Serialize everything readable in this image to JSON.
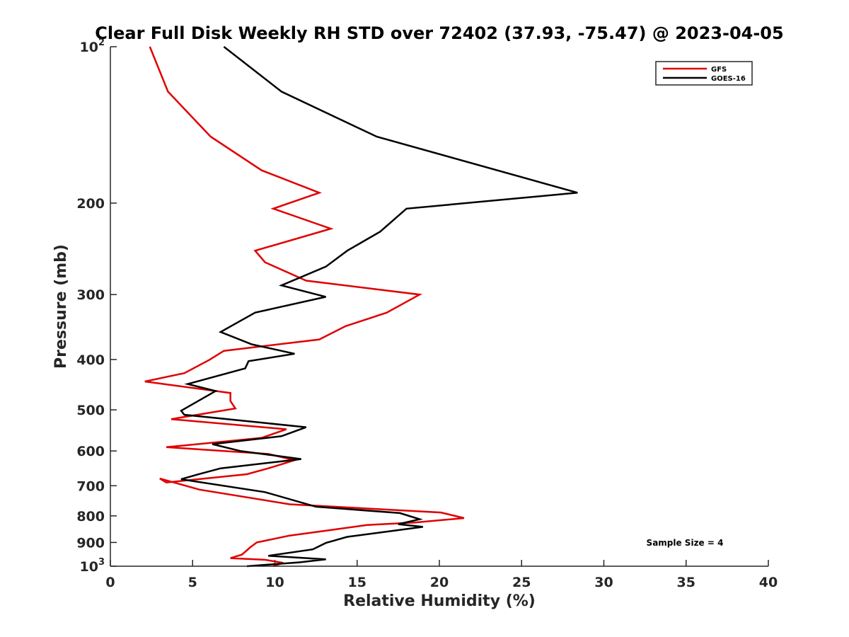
{
  "chart_data": {
    "type": "line",
    "title": "Clear Full Disk Weekly RH STD over 72402 (37.93, -75.47) @ 2023-04-05",
    "xlabel": "Relative Humidity (%)",
    "ylabel": "Pressure (mb)",
    "xlim": [
      0,
      40
    ],
    "ylim": [
      100,
      1000
    ],
    "yscale": "log",
    "y_reversed": true,
    "xticks": [
      0,
      5,
      10,
      15,
      20,
      25,
      30,
      35,
      40
    ],
    "xtick_labels": [
      "0",
      "5",
      "10",
      "15",
      "20",
      "25",
      "30",
      "35",
      "40"
    ],
    "yticks": [
      100,
      200,
      300,
      400,
      500,
      600,
      700,
      800,
      900,
      1000
    ],
    "ytick_labels": [
      {
        "base": "10",
        "sup": "2"
      },
      {
        "base": "200",
        "sup": ""
      },
      {
        "base": "300",
        "sup": ""
      },
      {
        "base": "400",
        "sup": ""
      },
      {
        "base": "500",
        "sup": ""
      },
      {
        "base": "600",
        "sup": ""
      },
      {
        "base": "700",
        "sup": ""
      },
      {
        "base": "800",
        "sup": ""
      },
      {
        "base": "900",
        "sup": ""
      },
      {
        "base": "10",
        "sup": "3"
      }
    ],
    "legend_position": "top-right",
    "annotation": "Sample Size = 4",
    "series": [
      {
        "name": "GFS",
        "color": "#e00000",
        "points": [
          [
            2.4,
            100
          ],
          [
            3.5,
            122
          ],
          [
            6.1,
            149
          ],
          [
            9.2,
            173
          ],
          [
            12.7,
            191
          ],
          [
            9.9,
            205
          ],
          [
            13.4,
            224
          ],
          [
            8.8,
            247
          ],
          [
            9.4,
            260
          ],
          [
            11.9,
            282
          ],
          [
            18.8,
            300
          ],
          [
            16.8,
            325
          ],
          [
            14.3,
            345
          ],
          [
            12.7,
            366
          ],
          [
            6.9,
            385
          ],
          [
            6.0,
            401
          ],
          [
            4.5,
            425
          ],
          [
            2.1,
            441
          ],
          [
            7.3,
            464
          ],
          [
            7.3,
            481
          ],
          [
            7.6,
            497
          ],
          [
            3.7,
            521
          ],
          [
            10.7,
            545
          ],
          [
            9.2,
            566
          ],
          [
            3.4,
            590
          ],
          [
            9.6,
            608
          ],
          [
            11.2,
            625
          ],
          [
            9.6,
            648
          ],
          [
            8.3,
            665
          ],
          [
            3.4,
            690
          ],
          [
            3.0,
            678
          ],
          [
            5.4,
            712
          ],
          [
            10.9,
            760
          ],
          [
            20.1,
            788
          ],
          [
            21.5,
            808
          ],
          [
            18.5,
            824
          ],
          [
            15.6,
            833
          ],
          [
            13.0,
            855
          ],
          [
            10.9,
            873
          ],
          [
            8.9,
            900
          ],
          [
            8.5,
            920
          ],
          [
            8.0,
            950
          ],
          [
            7.3,
            965
          ],
          [
            9.4,
            972
          ],
          [
            10.5,
            985
          ],
          [
            9.9,
            1000
          ]
        ]
      },
      {
        "name": "GOES-16",
        "color": "#000000",
        "points": [
          [
            6.9,
            100
          ],
          [
            10.4,
            122
          ],
          [
            16.2,
            149
          ],
          [
            28.4,
            191
          ],
          [
            18.0,
            205
          ],
          [
            16.4,
            227
          ],
          [
            14.4,
            247
          ],
          [
            13.1,
            265
          ],
          [
            10.4,
            288
          ],
          [
            13.1,
            303
          ],
          [
            8.8,
            325
          ],
          [
            6.7,
            354
          ],
          [
            8.6,
            374
          ],
          [
            11.2,
            390
          ],
          [
            8.4,
            403
          ],
          [
            8.2,
            416
          ],
          [
            4.7,
            446
          ],
          [
            6.4,
            460
          ],
          [
            4.3,
            502
          ],
          [
            4.5,
            511
          ],
          [
            11.9,
            540
          ],
          [
            10.4,
            562
          ],
          [
            6.2,
            582
          ],
          [
            7.9,
            600
          ],
          [
            11.6,
            622
          ],
          [
            6.7,
            648
          ],
          [
            5.3,
            666
          ],
          [
            4.3,
            680
          ],
          [
            9.4,
            720
          ],
          [
            12.5,
            768
          ],
          [
            17.6,
            790
          ],
          [
            18.8,
            812
          ],
          [
            17.5,
            830
          ],
          [
            19.0,
            840
          ],
          [
            14.4,
            878
          ],
          [
            13.1,
            902
          ],
          [
            12.3,
            928
          ],
          [
            9.6,
            955
          ],
          [
            13.1,
            970
          ],
          [
            11.5,
            983
          ],
          [
            8.3,
            1000
          ]
        ]
      }
    ]
  }
}
